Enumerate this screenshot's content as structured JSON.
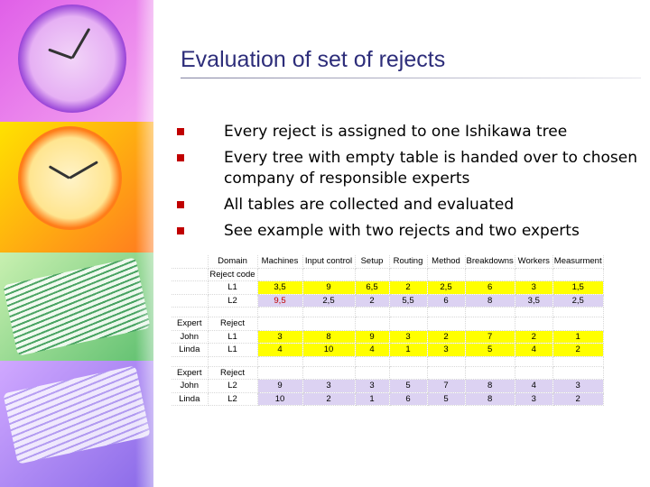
{
  "slide": {
    "title": "Evaluation of set of rejects",
    "bullets": [
      "Every reject is assigned to one Ishikawa tree",
      "Every tree with empty table is handed over to chosen company of responsible experts",
      "All tables are collected and evaluated",
      "See example with two rejects and two experts"
    ]
  },
  "colors": {
    "bullet": "#c00000",
    "title": "#2d2d7a",
    "highlight_yellow": "#ffff00",
    "highlight_lavender": "#dcd2f2",
    "red_text": "#c00000"
  },
  "table": {
    "header_label": "Domain",
    "header_sub": "Reject code",
    "columns": [
      "Machines",
      "Input control",
      "Setup",
      "Routing",
      "Method",
      "Breakdowns",
      "Workers",
      "Measurment"
    ],
    "summary_rows": [
      {
        "code": "L1",
        "values": [
          "3,5",
          "9",
          "6,5",
          "2",
          "2,5",
          "6",
          "3",
          "1,5"
        ]
      },
      {
        "code": "L2",
        "values": [
          "9,5",
          "2,5",
          "2",
          "5,5",
          "6",
          "8",
          "3,5",
          "2,5"
        ]
      }
    ],
    "blocks": [
      {
        "expert_label": "Expert",
        "reject_label": "Reject",
        "rows": [
          {
            "name": "John",
            "code": "L1",
            "values": [
              "3",
              "8",
              "9",
              "3",
              "2",
              "7",
              "2",
              "1"
            ]
          },
          {
            "name": "Linda",
            "code": "L1",
            "values": [
              "4",
              "10",
              "4",
              "1",
              "3",
              "5",
              "4",
              "2"
            ]
          }
        ]
      },
      {
        "expert_label": "Expert",
        "reject_label": "Reject",
        "rows": [
          {
            "name": "John",
            "code": "L2",
            "values": [
              "9",
              "3",
              "3",
              "5",
              "7",
              "8",
              "4",
              "3"
            ]
          },
          {
            "name": "Linda",
            "code": "L2",
            "values": [
              "10",
              "2",
              "1",
              "6",
              "5",
              "8",
              "3",
              "2"
            ]
          }
        ]
      }
    ]
  }
}
